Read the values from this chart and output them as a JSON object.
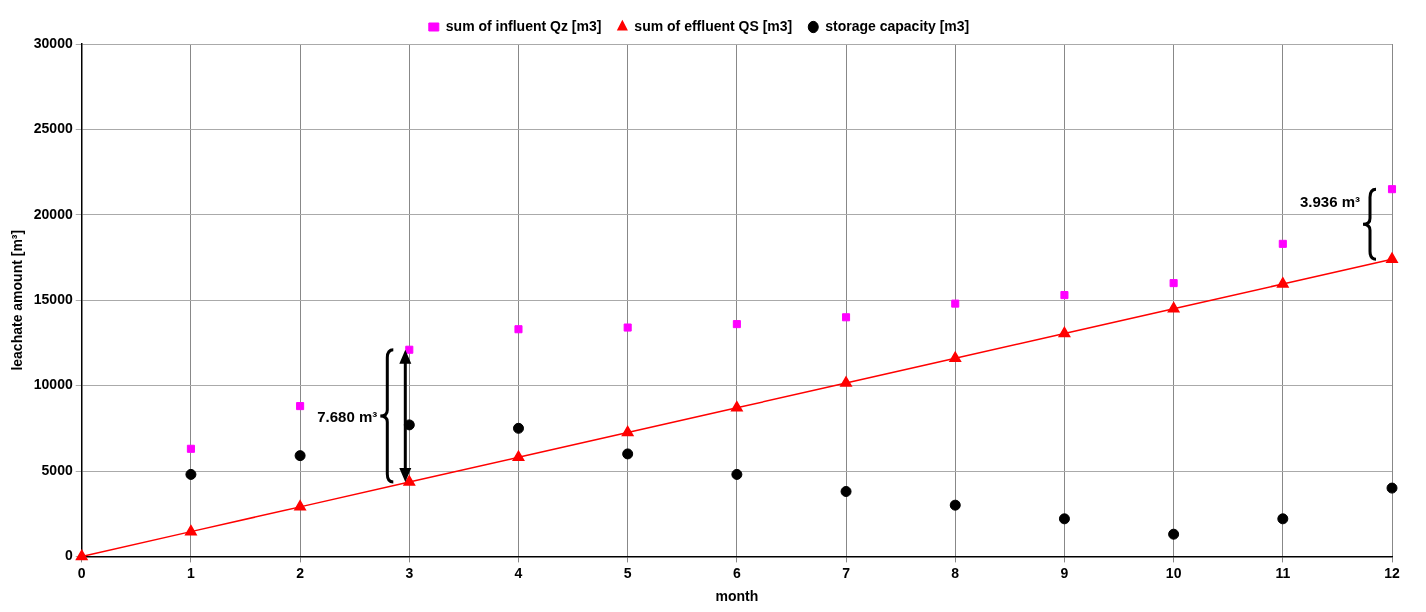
{
  "chart_data": {
    "type": "scatter",
    "xlabel": "month",
    "ylabel": "leachate amount [m³]",
    "x": [
      1,
      2,
      3,
      4,
      5,
      6,
      7,
      8,
      9,
      10,
      11,
      12
    ],
    "xlim": [
      0,
      12
    ],
    "xticks": [
      0,
      1,
      2,
      3,
      4,
      5,
      6,
      7,
      8,
      9,
      10,
      11,
      12
    ],
    "ylim": [
      0,
      30000
    ],
    "yticks": [
      0,
      5000,
      10000,
      15000,
      20000,
      25000,
      30000
    ],
    "grid": true,
    "legend": "top",
    "series": [
      {
        "name": "sum of influent Qz [m3]",
        "type": "scatter",
        "marker": "square",
        "color": "#ff00ff",
        "values": [
          6300,
          8800,
          12100,
          13300,
          13400,
          13600,
          14000,
          14800,
          15300,
          16000,
          18300,
          21500
        ]
      },
      {
        "name": "sum of effluent QS [m3]",
        "type": "line",
        "marker": "triangle",
        "color": "#ff0000",
        "x": [
          0,
          1,
          2,
          3,
          4,
          5,
          6,
          7,
          8,
          9,
          10,
          11,
          12
        ],
        "values": [
          0,
          1450,
          2900,
          4350,
          5800,
          7250,
          8700,
          10150,
          11600,
          13050,
          14500,
          15950,
          17400
        ]
      },
      {
        "name": "storage capacity [m3]",
        "type": "scatter",
        "marker": "circle",
        "color": "#000000",
        "values": [
          4800,
          5900,
          7700,
          7500,
          6000,
          4800,
          3800,
          3000,
          2200,
          1300,
          2200,
          4000
        ]
      }
    ],
    "annotations": [
      {
        "text": "7.680 m³",
        "x": 3,
        "y": 8200
      },
      {
        "text": "3.936 m³",
        "x": 12,
        "y": 21500
      }
    ]
  }
}
